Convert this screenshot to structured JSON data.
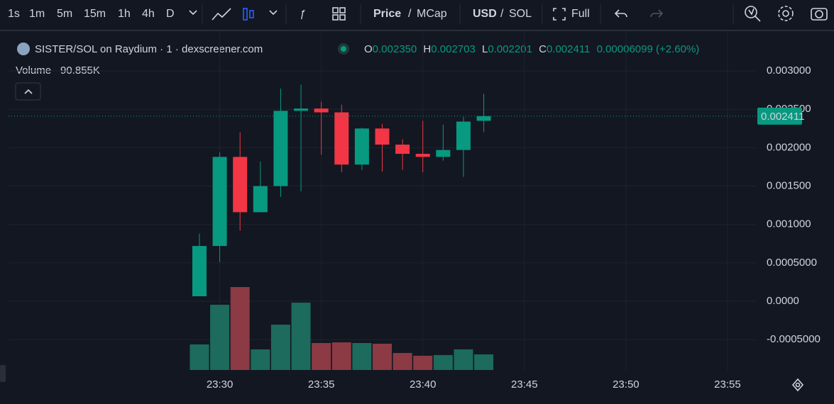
{
  "toolbar": {
    "intervals": [
      "1s",
      "1m",
      "5m",
      "15m",
      "1h",
      "4h",
      "D"
    ],
    "active_interval": "1m",
    "price": "Price",
    "separator": "/",
    "mcap": "MCap",
    "usd": "USD",
    "sol": "SOL",
    "full": "Full"
  },
  "header": {
    "title": "SISTER/SOL on Raydium · 1 · dexscreener.com",
    "o": "O",
    "h": "H",
    "l": "L",
    "c": "C",
    "open": "0.002350",
    "high": "0.002703",
    "low": "0.002201",
    "close": "0.002411",
    "change": "0.00006099 (+2.60%)"
  },
  "chart_data": {
    "type": "candlestick",
    "x": [
      "23:29",
      "23:30",
      "23:31",
      "23:32",
      "23:33",
      "23:34",
      "23:35",
      "23:36",
      "23:37",
      "23:38",
      "23:39",
      "23:40",
      "23:41",
      "23:42",
      "23:43"
    ],
    "open": [
      6.5e-05,
      0.00072,
      0.00188,
      0.00116,
      0.0015,
      0.00248,
      0.00251,
      0.00246,
      0.00178,
      0.00225,
      0.00204,
      0.00192,
      0.00188,
      0.00197,
      0.00235
    ],
    "high": [
      0.00088,
      0.00194,
      0.0022,
      0.00182,
      0.00277,
      0.00282,
      0.0026,
      0.00256,
      0.00226,
      0.00231,
      0.00211,
      0.00235,
      0.0023,
      0.0024,
      0.002703
    ],
    "low": [
      6.5e-05,
      0.00051,
      0.00092,
      0.00116,
      0.00136,
      0.00143,
      0.00191,
      0.00168,
      0.00171,
      0.00169,
      0.00171,
      0.00168,
      0.00183,
      0.00162,
      0.002201
    ],
    "close": [
      0.00072,
      0.00188,
      0.00116,
      0.0015,
      0.00248,
      0.00251,
      0.00246,
      0.00178,
      0.00225,
      0.00204,
      0.00192,
      0.00188,
      0.00197,
      0.00234,
      0.002411
    ],
    "up_color": "#089981",
    "down_color": "#f23645",
    "volume": {
      "name": "Volume",
      "latest_label": "90.855K",
      "values": [
        149,
        380,
        483,
        120,
        264,
        392,
        157,
        161,
        157,
        153,
        99,
        83,
        87,
        120,
        90.855
      ],
      "up_color": "#1c6b5d",
      "down_color": "#8c3a43"
    },
    "ylim": [
      -0.000895,
      0.003508
    ],
    "yticks": [
      {
        "value": -0.0005,
        "label": "-0.0005000"
      },
      {
        "value": 0,
        "label": "0.0000"
      },
      {
        "value": 0.0005,
        "label": "0.0005000"
      },
      {
        "value": 0.001,
        "label": "0.001000"
      },
      {
        "value": 0.0015,
        "label": "0.001500"
      },
      {
        "value": 0.002,
        "label": "0.002000"
      },
      {
        "value": 0.0025,
        "label": "0.002500"
      },
      {
        "value": 0.003,
        "label": "0.003000"
      }
    ],
    "xlim": [
      "23:19:36",
      "23:56:24"
    ],
    "xticks": [
      "23:30",
      "23:35",
      "23:40",
      "23:45",
      "23:50",
      "23:55"
    ],
    "price_line": {
      "value": 0.002411,
      "label": "0.002411"
    },
    "grid": true
  }
}
